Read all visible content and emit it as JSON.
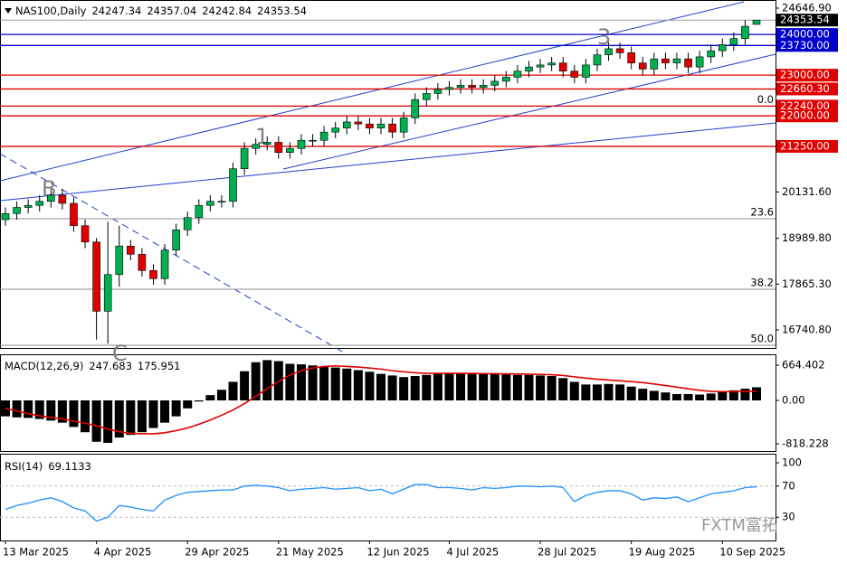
{
  "chart_data": [
    {
      "type": "candlestick",
      "title": "NAS100,Daily",
      "categories": [
        "13 Mar 2025",
        null,
        null,
        null,
        null,
        null,
        null,
        null,
        "4 Apr 2025",
        null,
        null,
        null,
        null,
        null,
        null,
        null,
        "29 Apr 2025",
        null,
        null,
        null,
        null,
        null,
        null,
        null,
        "21 May 2025",
        null,
        null,
        null,
        null,
        null,
        null,
        null,
        "12 Jun 2025",
        null,
        null,
        null,
        null,
        null,
        null,
        "4 Jul 2025",
        null,
        null,
        null,
        null,
        null,
        null,
        null,
        "28 Jul 2025",
        null,
        null,
        null,
        null,
        null,
        null,
        null,
        "19 Aug 2025",
        null,
        null,
        null,
        null,
        null,
        null,
        null,
        "10 Sep 2025",
        null,
        null,
        null
      ],
      "open": [
        19450,
        19600,
        19750,
        19800,
        19900,
        20050,
        19850,
        19300,
        18900,
        17200,
        18100,
        18800,
        18600,
        18200,
        18000,
        18700,
        19200,
        19500,
        19800,
        19900,
        19900,
        20700,
        21200,
        21300,
        21350,
        21100,
        21200,
        21400,
        21400,
        21600,
        21700,
        21850,
        21800,
        21700,
        21800,
        21600,
        21950,
        22400,
        22550,
        22650,
        22700,
        22750,
        22700,
        22750,
        22850,
        22950,
        23100,
        23200,
        23250,
        23300,
        23100,
        22950,
        23250,
        23500,
        23650,
        23550,
        23300,
        23150,
        23400,
        23300,
        23400,
        23200,
        23450,
        23600,
        23750,
        23900,
        24247.34
      ],
      "high": [
        19750,
        19900,
        19950,
        20050,
        20200,
        20200,
        20000,
        19450,
        19000,
        19400,
        19300,
        18950,
        18750,
        18350,
        18850,
        19350,
        19650,
        19950,
        20050,
        20050,
        20850,
        21350,
        21450,
        21500,
        21500,
        21350,
        21550,
        21550,
        21750,
        21850,
        22000,
        22000,
        21950,
        21950,
        21950,
        22100,
        22550,
        22700,
        22800,
        22850,
        22900,
        22900,
        22900,
        23000,
        23100,
        23250,
        23350,
        23400,
        23450,
        23450,
        23250,
        23400,
        23650,
        23800,
        23800,
        23700,
        23450,
        23550,
        23550,
        23550,
        23550,
        23600,
        23750,
        23900,
        24050,
        24350,
        24357.04
      ],
      "low": [
        19300,
        19450,
        19600,
        19650,
        19750,
        19700,
        19150,
        18750,
        16500,
        16400,
        17800,
        18450,
        18050,
        17850,
        17850,
        18550,
        19050,
        19350,
        19650,
        19750,
        19750,
        20550,
        21050,
        21150,
        20950,
        20950,
        21050,
        21250,
        21250,
        21450,
        21550,
        21650,
        21550,
        21550,
        21450,
        21450,
        21800,
        22250,
        22400,
        22500,
        22550,
        22550,
        22550,
        22600,
        22700,
        22800,
        22950,
        23050,
        23100,
        22950,
        22800,
        22800,
        23100,
        23350,
        23400,
        23150,
        23000,
        23000,
        23150,
        23150,
        23050,
        23050,
        23300,
        23450,
        23600,
        23750,
        24242.84
      ],
      "close": [
        19600,
        19750,
        19800,
        19900,
        20050,
        19850,
        19300,
        18900,
        17200,
        18100,
        18800,
        18600,
        18200,
        18000,
        18700,
        19200,
        19500,
        19800,
        19900,
        19900,
        20700,
        21200,
        21300,
        21350,
        21100,
        21200,
        21400,
        21400,
        21600,
        21700,
        21850,
        21800,
        21700,
        21800,
        21600,
        21950,
        22400,
        22550,
        22650,
        22700,
        22750,
        22700,
        22750,
        22850,
        22950,
        23100,
        23200,
        23250,
        23300,
        23100,
        22950,
        23250,
        23500,
        23650,
        23550,
        23300,
        23150,
        23400,
        23300,
        23400,
        23200,
        23450,
        23600,
        23750,
        23900,
        24200,
        24353.54
      ],
      "up_color": "#00b050",
      "down_color": "#e00000",
      "ylim": [
        16296,
        24847
      ],
      "yticks": [
        {
          "value": 24646.9,
          "label": "24646.90"
        },
        {
          "value": 20131.6,
          "label": "20131.60"
        },
        {
          "value": 18989.8,
          "label": "18989.80"
        },
        {
          "value": 17865.3,
          "label": "17865.30"
        },
        {
          "value": 16740.8,
          "label": "16740.80"
        }
      ],
      "levels": [
        {
          "value": 24000,
          "label": "24000.00",
          "color": "#0000cd"
        },
        {
          "value": 23730,
          "label": "23730.00",
          "color": "#0000cd"
        },
        {
          "value": 23000,
          "label": "23000.00",
          "color": "#e00000"
        },
        {
          "value": 22660.3,
          "label": "22660.30",
          "color": "#e00000"
        },
        {
          "value": 22240,
          "label": "22240.00",
          "color": "#e00000"
        },
        {
          "value": 22000,
          "label": "22000.00",
          "color": "#e00000"
        },
        {
          "value": 21250,
          "label": "21250.00",
          "color": "#e00000"
        }
      ],
      "fib": [
        {
          "value": 22240,
          "label": "0.0"
        },
        {
          "value": 19472,
          "label": "23.6"
        },
        {
          "value": 17740,
          "label": "38.2"
        },
        {
          "value": 16362,
          "label": "50.0"
        }
      ],
      "annotations": [
        "B",
        "1",
        "3",
        "C"
      ],
      "watermark": "FXTM富拓"
    },
    {
      "type": "macd",
      "title": "MACD(12,26,9)",
      "histogram": [
        -300,
        -320,
        -330,
        -350,
        -380,
        -420,
        -500,
        -600,
        -780,
        -800,
        -700,
        -650,
        -600,
        -520,
        -420,
        -300,
        -150,
        -20,
        100,
        200,
        350,
        550,
        720,
        760,
        740,
        690,
        680,
        660,
        640,
        620,
        600,
        570,
        540,
        500,
        470,
        440,
        460,
        480,
        500,
        510,
        510,
        500,
        500,
        500,
        490,
        480,
        480,
        470,
        460,
        420,
        350,
        300,
        300,
        310,
        300,
        260,
        220,
        180,
        150,
        120,
        120,
        110,
        130,
        160,
        190,
        220,
        247.683
      ],
      "signal": [
        -150,
        -200,
        -250,
        -290,
        -320,
        -350,
        -390,
        -430,
        -480,
        -540,
        -590,
        -620,
        -630,
        -630,
        -610,
        -570,
        -520,
        -450,
        -370,
        -280,
        -180,
        -60,
        80,
        220,
        360,
        480,
        560,
        610,
        640,
        650,
        640,
        630,
        610,
        590,
        560,
        540,
        520,
        510,
        510,
        510,
        510,
        510,
        505,
        505,
        500,
        500,
        495,
        490,
        485,
        470,
        445,
        420,
        400,
        385,
        370,
        355,
        335,
        310,
        280,
        250,
        220,
        190,
        170,
        165,
        165,
        170,
        175.951
      ],
      "color": "#000000",
      "signal_color": "#e00000",
      "ylim": [
        -937,
        852
      ],
      "yticks": [
        {
          "value": 664.402,
          "label": "664.402"
        },
        {
          "value": 0,
          "label": "0.00"
        },
        {
          "value": -818.228,
          "label": "-818.228"
        }
      ]
    },
    {
      "type": "line",
      "title": "RSI(14)",
      "values": [
        40,
        45,
        48,
        52,
        55,
        50,
        42,
        38,
        25,
        30,
        45,
        43,
        40,
        38,
        52,
        58,
        62,
        63,
        64,
        65,
        65,
        70,
        71,
        70,
        68,
        64,
        66,
        67,
        68,
        66,
        67,
        68,
        64,
        66,
        60,
        66,
        72,
        72,
        68,
        68,
        67,
        65,
        68,
        67,
        68,
        70,
        70,
        69,
        70,
        68,
        50,
        58,
        62,
        64,
        64,
        60,
        52,
        55,
        54,
        56,
        50,
        55,
        60,
        62,
        64,
        68,
        69.1133
      ],
      "color": "#1e90ff",
      "ylim": [
        0,
        100
      ],
      "yticks": [
        100,
        70,
        30
      ]
    }
  ]
}
